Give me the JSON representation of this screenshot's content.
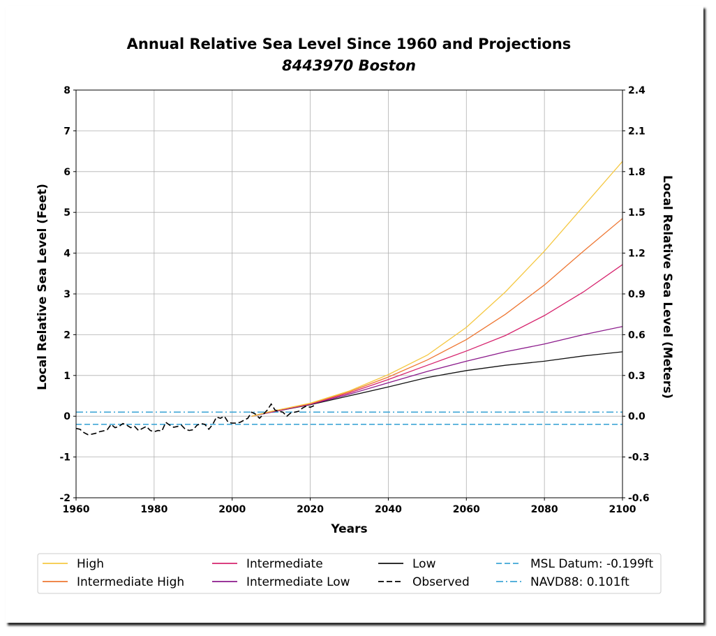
{
  "chart_data": {
    "type": "line",
    "title": "Annual Relative Sea Level Since 1960 and Projections",
    "subtitle": "8443970 Boston",
    "xlabel": "Years",
    "ylabel": "Local Relative Sea Level (Feet)",
    "ylabel_right": "Local Relative Sea Level (Meters)",
    "xlim": [
      1960,
      2100
    ],
    "ylim": [
      -2,
      8
    ],
    "ylim_right": [
      -0.6,
      2.4
    ],
    "x_ticks": [
      "1960",
      "1980",
      "2000",
      "2020",
      "2040",
      "2060",
      "2080",
      "2100"
    ],
    "y_ticks": [
      "-2",
      "-1",
      "0",
      "1",
      "2",
      "3",
      "4",
      "5",
      "6",
      "7",
      "8"
    ],
    "y_ticks_right": [
      "-0.6",
      "-0.3",
      "0.0",
      "0.3",
      "0.6",
      "0.9",
      "1.2",
      "1.5",
      "1.8",
      "2.1",
      "2.4"
    ],
    "grid": true,
    "legend_position": "bottom",
    "series": [
      {
        "name": "High",
        "color": "#f5c842",
        "style": "solid",
        "x": [
          2005,
          2010,
          2020,
          2030,
          2040,
          2050,
          2060,
          2070,
          2080,
          2090,
          2100
        ],
        "y": [
          0.0,
          0.12,
          0.32,
          0.62,
          1.02,
          1.5,
          2.18,
          3.05,
          4.05,
          5.15,
          6.25
        ]
      },
      {
        "name": "Intermediate High",
        "color": "#ee7733",
        "style": "solid",
        "x": [
          2005,
          2010,
          2020,
          2030,
          2040,
          2050,
          2060,
          2070,
          2080,
          2090,
          2100
        ],
        "y": [
          0.0,
          0.12,
          0.31,
          0.6,
          0.96,
          1.38,
          1.88,
          2.5,
          3.22,
          4.05,
          4.85
        ]
      },
      {
        "name": "Intermediate",
        "color": "#d6246e",
        "style": "solid",
        "x": [
          2005,
          2010,
          2020,
          2030,
          2040,
          2050,
          2060,
          2070,
          2080,
          2090,
          2100
        ],
        "y": [
          0.0,
          0.11,
          0.3,
          0.57,
          0.9,
          1.25,
          1.6,
          1.98,
          2.47,
          3.05,
          3.72
        ]
      },
      {
        "name": "Intermediate Low",
        "color": "#8b1a8b",
        "style": "solid",
        "x": [
          2005,
          2010,
          2020,
          2030,
          2040,
          2050,
          2060,
          2070,
          2080,
          2090,
          2100
        ],
        "y": [
          0.0,
          0.1,
          0.29,
          0.54,
          0.82,
          1.1,
          1.35,
          1.58,
          1.77,
          2.0,
          2.2
        ]
      },
      {
        "name": "Low",
        "color": "#111111",
        "style": "solid",
        "x": [
          2005,
          2010,
          2020,
          2030,
          2040,
          2050,
          2060,
          2070,
          2080,
          2090,
          2100
        ],
        "y": [
          0.0,
          0.1,
          0.28,
          0.5,
          0.72,
          0.95,
          1.12,
          1.25,
          1.35,
          1.48,
          1.58
        ]
      },
      {
        "name": "Observed",
        "color": "#000000",
        "style": "dashed",
        "x": [
          1960,
          1961,
          1962,
          1963,
          1964,
          1965,
          1966,
          1967,
          1968,
          1969,
          1970,
          1971,
          1972,
          1973,
          1974,
          1975,
          1976,
          1977,
          1978,
          1979,
          1980,
          1981,
          1982,
          1983,
          1984,
          1985,
          1986,
          1987,
          1988,
          1989,
          1990,
          1991,
          1992,
          1993,
          1994,
          1995,
          1996,
          1997,
          1998,
          1999,
          2000,
          2001,
          2002,
          2003,
          2004,
          2005,
          2006,
          2007,
          2008,
          2009,
          2010,
          2011,
          2012,
          2013,
          2014,
          2015,
          2016,
          2017,
          2018,
          2019,
          2020,
          2021
        ],
        "y": [
          -0.3,
          -0.32,
          -0.4,
          -0.45,
          -0.44,
          -0.42,
          -0.38,
          -0.36,
          -0.33,
          -0.2,
          -0.28,
          -0.25,
          -0.18,
          -0.22,
          -0.28,
          -0.25,
          -0.35,
          -0.3,
          -0.25,
          -0.35,
          -0.38,
          -0.35,
          -0.36,
          -0.15,
          -0.22,
          -0.27,
          -0.25,
          -0.22,
          -0.32,
          -0.35,
          -0.33,
          -0.22,
          -0.18,
          -0.2,
          -0.32,
          -0.2,
          -0.02,
          -0.05,
          0.0,
          -0.15,
          -0.17,
          -0.17,
          -0.15,
          -0.1,
          -0.05,
          0.1,
          0.05,
          -0.05,
          0.05,
          0.15,
          0.3,
          0.15,
          0.12,
          0.1,
          0.0,
          0.08,
          0.1,
          0.12,
          0.2,
          0.25,
          0.22,
          0.26
        ]
      },
      {
        "name": "MSL Datum: -0.199ft",
        "color": "#3fa6d6",
        "style": "dashed",
        "x": [
          1960,
          2100
        ],
        "y": [
          -0.199,
          -0.199
        ]
      },
      {
        "name": "NAVD88: 0.101ft",
        "color": "#3fa6d6",
        "style": "dashdot",
        "x": [
          1960,
          2100
        ],
        "y": [
          0.101,
          0.101
        ]
      }
    ]
  }
}
